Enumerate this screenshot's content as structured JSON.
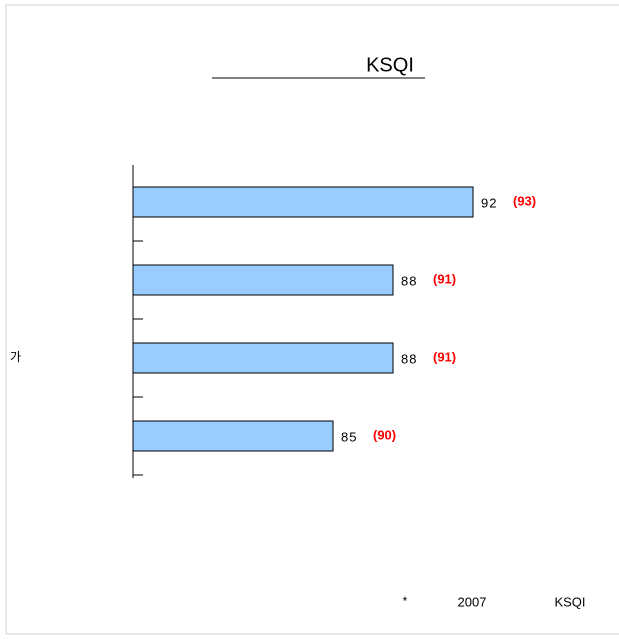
{
  "chart_data": {
    "type": "bar",
    "orientation": "horizontal",
    "title": "KSQI",
    "categories": [
      null,
      null,
      "가",
      null
    ],
    "values": [
      92,
      88,
      88,
      85
    ],
    "annotations": [
      "(93)",
      "(91)",
      "(91)",
      "(90)"
    ],
    "color": "#99ccff",
    "annotation_color": "#ff0000",
    "xlim": [
      75,
      99
    ],
    "footnote": [
      "*",
      "2007",
      "KSQI"
    ]
  }
}
